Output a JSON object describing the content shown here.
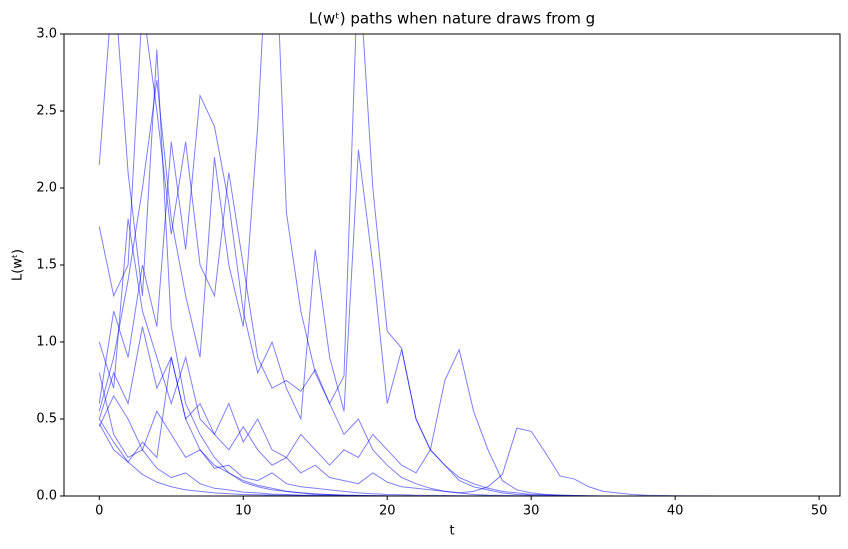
{
  "chart_data": {
    "type": "line",
    "title": "L(wᵗ) paths when nature draws from g",
    "xlabel": "t",
    "ylabel": "L(wᵗ)",
    "xlim": [
      -2.45,
      51.45
    ],
    "ylim": [
      0,
      3
    ],
    "xticks": [
      0,
      10,
      20,
      30,
      40,
      50
    ],
    "yticks": [
      {
        "value": 0,
        "label": "0.0"
      },
      0.5,
      {
        "value": 1,
        "label": "1.0"
      },
      1.5,
      {
        "value": 2,
        "label": "2.0"
      },
      2.5,
      {
        "value": 3,
        "label": "3.0"
      }
    ],
    "color": "#0000ff",
    "opacity": 0.5,
    "grid": false,
    "x": [
      0,
      1,
      2,
      3,
      4,
      5,
      6,
      7,
      8,
      9,
      10,
      11,
      12,
      13,
      14,
      15,
      16,
      17,
      18,
      19,
      20,
      21,
      22,
      23,
      24,
      25,
      26,
      27,
      28,
      29,
      30,
      31,
      32,
      33,
      34,
      35,
      36,
      37,
      38,
      39,
      40,
      41,
      42,
      43,
      44,
      45,
      46,
      47,
      48,
      49
    ],
    "series": [
      {
        "values": [
          0.47,
          0.3,
          0.22,
          0.14,
          0.09,
          0.06,
          0.04,
          0.03,
          0.02,
          0.015,
          0.01,
          0.008,
          0.006,
          0.004,
          0.003,
          0.002,
          0.002,
          0.001,
          0.001,
          0.001,
          0,
          0,
          0,
          0,
          0,
          0,
          0,
          0,
          0,
          0,
          0,
          0,
          0,
          0,
          0,
          0,
          0,
          0,
          0,
          0,
          0,
          0,
          0,
          0,
          0,
          0,
          0,
          0,
          0,
          0
        ]
      },
      {
        "values": [
          2.15,
          3.4,
          2.1,
          1.3,
          2.9,
          1.1,
          0.6,
          0.4,
          0.25,
          0.15,
          0.09,
          0.06,
          0.04,
          0.03,
          0.02,
          0.01,
          0.008,
          0.005,
          0.003,
          0.002,
          0.001,
          0,
          0,
          0,
          0,
          0,
          0,
          0,
          0,
          0,
          0,
          0,
          0,
          0,
          0,
          0,
          0,
          0,
          0,
          0,
          0,
          0,
          0,
          0,
          0,
          0,
          0,
          0,
          0,
          0
        ]
      },
      {
        "values": [
          0.5,
          0.8,
          0.6,
          1.1,
          0.7,
          0.9,
          0.5,
          0.6,
          0.4,
          0.3,
          0.45,
          0.3,
          0.2,
          0.25,
          0.15,
          0.2,
          0.12,
          0.1,
          0.08,
          0.15,
          0.09,
          0.06,
          0.05,
          0.04,
          0.03,
          0.02,
          0.03,
          0.06,
          0.14,
          0.44,
          0.42,
          0.28,
          0.13,
          0.11,
          0.06,
          0.03,
          0.02,
          0.01,
          0.005,
          0.003,
          0.002,
          0.001,
          0.001,
          0,
          0,
          0,
          0,
          0,
          0,
          0
        ]
      },
      {
        "values": [
          0.6,
          1.2,
          0.9,
          1.5,
          1.1,
          2.3,
          1.6,
          2.6,
          2.4,
          1.9,
          1.2,
          0.8,
          1.0,
          0.7,
          0.5,
          1.6,
          0.9,
          0.55,
          2.25,
          1.5,
          0.6,
          0.95,
          0.5,
          0.3,
          0.2,
          0.12,
          0.08,
          0.05,
          0.03,
          0.02,
          0.01,
          0.008,
          0.005,
          0.003,
          0.002,
          0.001,
          0,
          0,
          0,
          0,
          0,
          0,
          0,
          0,
          0,
          0,
          0,
          0,
          0,
          0
        ]
      },
      {
        "values": [
          1.0,
          0.7,
          1.8,
          1.2,
          0.9,
          0.6,
          0.9,
          0.5,
          0.4,
          0.6,
          0.35,
          0.5,
          0.3,
          0.25,
          0.4,
          0.3,
          0.2,
          0.3,
          0.25,
          0.4,
          0.3,
          0.2,
          0.15,
          0.3,
          0.75,
          0.95,
          0.55,
          0.3,
          0.1,
          0.04,
          0.02,
          0.01,
          0.006,
          0.003,
          0.001,
          0,
          0,
          0,
          0,
          0,
          0,
          0,
          0,
          0,
          0,
          0,
          0,
          0,
          0,
          0
        ]
      },
      {
        "values": [
          0.55,
          0.9,
          1.4,
          2.0,
          2.7,
          1.8,
          1.3,
          0.9,
          2.2,
          1.5,
          1.1,
          2.4,
          4.2,
          1.84,
          1.2,
          0.8,
          0.6,
          0.4,
          0.5,
          0.3,
          0.2,
          0.12,
          0.08,
          0.05,
          0.03,
          0.02,
          0.01,
          0.006,
          0.004,
          0.002,
          0.001,
          0,
          0,
          0,
          0,
          0,
          0,
          0,
          0,
          0,
          0,
          0,
          0,
          0,
          0,
          0,
          0,
          0,
          0,
          0
        ]
      },
      {
        "values": [
          0.8,
          0.4,
          0.25,
          0.3,
          0.18,
          0.12,
          0.15,
          0.08,
          0.05,
          0.04,
          0.025,
          0.02,
          0.012,
          0.01,
          0.006,
          0.004,
          0.003,
          0.002,
          0.001,
          0.001,
          0,
          0,
          0,
          0,
          0,
          0,
          0,
          0,
          0,
          0,
          0,
          0,
          0,
          0,
          0,
          0,
          0,
          0,
          0,
          0,
          0,
          0,
          0,
          0,
          0,
          0,
          0,
          0,
          0,
          0
        ]
      },
      {
        "values": [
          0.45,
          0.65,
          0.5,
          0.3,
          0.55,
          0.4,
          0.25,
          0.3,
          0.18,
          0.2,
          0.12,
          0.1,
          0.15,
          0.08,
          0.06,
          0.05,
          0.04,
          0.03,
          0.02,
          0.015,
          0.01,
          0.008,
          0.005,
          0.004,
          0.003,
          0.002,
          0.001,
          0.001,
          0,
          0,
          0,
          0,
          0,
          0,
          0,
          0,
          0,
          0,
          0,
          0,
          0,
          0,
          0,
          0,
          0,
          0,
          0,
          0,
          0,
          0
        ]
      },
      {
        "values": [
          1.75,
          1.3,
          1.5,
          3.2,
          2.5,
          1.7,
          2.3,
          1.5,
          1.3,
          2.1,
          1.5,
          0.9,
          0.7,
          0.75,
          0.68,
          0.82,
          0.6,
          0.78,
          3.5,
          2.0,
          1.07,
          0.96,
          0.5,
          0.3,
          0.2,
          0.1,
          0.06,
          0.04,
          0.02,
          0.01,
          0.006,
          0.004,
          0.002,
          0.001,
          0,
          0,
          0,
          0,
          0,
          0,
          0,
          0,
          0,
          0,
          0,
          0,
          0,
          0,
          0,
          0
        ]
      },
      {
        "values": [
          0.5,
          0.35,
          0.22,
          0.35,
          0.25,
          0.9,
          0.5,
          0.3,
          0.2,
          0.15,
          0.1,
          0.07,
          0.05,
          0.03,
          0.02,
          0.015,
          0.01,
          0.006,
          0.004,
          0.002,
          0.001,
          0.001,
          0,
          0,
          0,
          0,
          0,
          0,
          0,
          0,
          0,
          0,
          0,
          0,
          0,
          0,
          0,
          0,
          0,
          0,
          0,
          0,
          0,
          0,
          0,
          0,
          0,
          0,
          0,
          0
        ]
      }
    ]
  }
}
